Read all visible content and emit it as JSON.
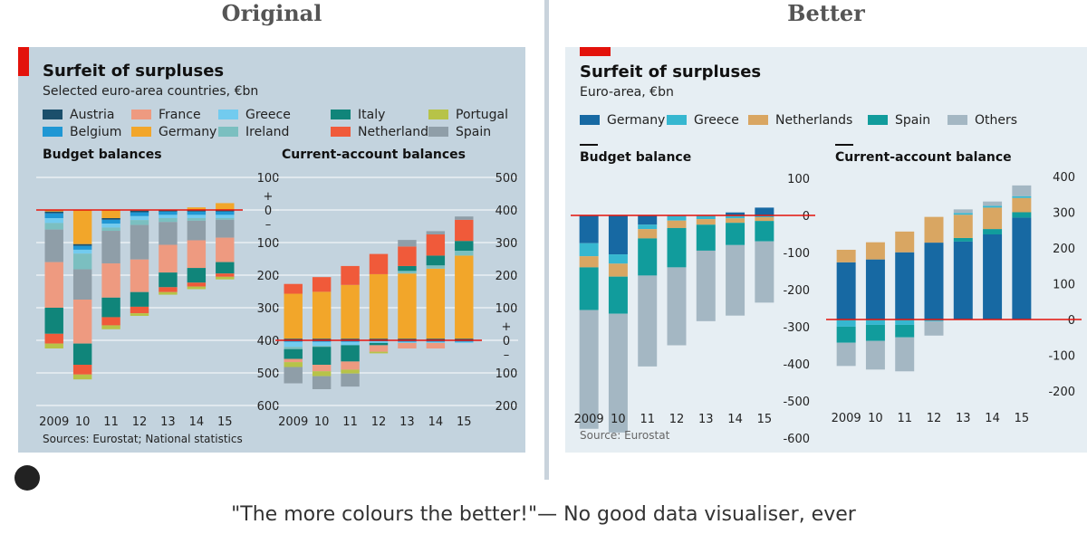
{
  "headings": {
    "left": "Original",
    "right": "Better"
  },
  "left": {
    "title": "Surfeit of surpluses",
    "subtitle": "Selected euro-area countries, €bn",
    "legend": [
      {
        "name": "Austria",
        "color": "#1b4f6b"
      },
      {
        "name": "Belgium",
        "color": "#1f97d4"
      },
      {
        "name": "France",
        "color": "#ee9a80"
      },
      {
        "name": "Germany",
        "color": "#f2a62a"
      },
      {
        "name": "Greece",
        "color": "#72cbef"
      },
      {
        "name": "Ireland",
        "color": "#7bbfc0"
      },
      {
        "name": "Italy",
        "color": "#10857a"
      },
      {
        "name": "Netherlands",
        "color": "#f05a3a"
      },
      {
        "name": "Portugal",
        "color": "#b7c348"
      },
      {
        "name": "Spain",
        "color": "#8f9ea8"
      }
    ],
    "source": "Sources: Eurostat; National statistics"
  },
  "right": {
    "title": "Surfeit of surpluses",
    "subtitle": "Euro-area, €bn",
    "legend": [
      {
        "name": "Germany",
        "color": "#1769a3"
      },
      {
        "name": "Greece",
        "color": "#36b7d0"
      },
      {
        "name": "Netherlands",
        "color": "#d9a662"
      },
      {
        "name": "Spain",
        "color": "#119c9c"
      },
      {
        "name": "Others",
        "color": "#a4b7c3"
      }
    ],
    "source": "Source: Eurostat"
  },
  "caption": "\"The more colours the better!\"— No good data visualiser, ever",
  "chart_data": [
    {
      "type": "bar",
      "id": "orig-budget",
      "title": "Budget balances",
      "stacked": true,
      "categories": [
        "2009",
        "10",
        "11",
        "12",
        "13",
        "14",
        "15"
      ],
      "ylim": [
        -600,
        100
      ],
      "yticks": [
        {
          "v": 100,
          "t": "100"
        },
        {
          "v": 0,
          "t": "0"
        },
        {
          "v": -100,
          "t": "100"
        },
        {
          "v": -200,
          "t": "200"
        },
        {
          "v": -300,
          "t": "300"
        },
        {
          "v": -400,
          "t": "400"
        },
        {
          "v": -500,
          "t": "500"
        },
        {
          "v": -600,
          "t": "600"
        }
      ],
      "sign_labels": [
        "+",
        "–"
      ],
      "series": [
        {
          "name": "Germany",
          "values": [
            -5,
            -105,
            -25,
            -2,
            0,
            8,
            21
          ]
        },
        {
          "name": "Austria",
          "values": [
            -5,
            -5,
            -5,
            -5,
            -5,
            -5,
            -5
          ]
        },
        {
          "name": "Belgium",
          "values": [
            -15,
            -12,
            -12,
            -12,
            -10,
            -10,
            -10
          ]
        },
        {
          "name": "Greece",
          "values": [
            -15,
            -12,
            -12,
            -12,
            -10,
            -10,
            -10
          ]
        },
        {
          "name": "Ireland",
          "values": [
            -20,
            -48,
            -10,
            -15,
            -12,
            -8,
            -5
          ]
        },
        {
          "name": "Spain",
          "values": [
            -100,
            -93,
            -100,
            -106,
            -70,
            -60,
            -55
          ]
        },
        {
          "name": "France",
          "values": [
            -140,
            -135,
            -105,
            -100,
            -85,
            -85,
            -75
          ]
        },
        {
          "name": "Italy",
          "values": [
            -80,
            -65,
            -60,
            -45,
            -45,
            -45,
            -35
          ]
        },
        {
          "name": "Netherlands",
          "values": [
            -30,
            -30,
            -25,
            -20,
            -15,
            -12,
            -10
          ]
        },
        {
          "name": "Portugal",
          "values": [
            -15,
            -15,
            -12,
            -8,
            -8,
            -8,
            -8
          ]
        }
      ]
    },
    {
      "type": "bar",
      "id": "orig-current",
      "title": "Current-account balances",
      "stacked": true,
      "categories": [
        "2009",
        "10",
        "11",
        "12",
        "13",
        "14",
        "15"
      ],
      "ylim": [
        -200,
        500
      ],
      "yticks": [
        {
          "v": 500,
          "t": "500"
        },
        {
          "v": 400,
          "t": "400"
        },
        {
          "v": 300,
          "t": "300"
        },
        {
          "v": 200,
          "t": "200"
        },
        {
          "v": 100,
          "t": "100"
        },
        {
          "v": 0,
          "t": "0"
        },
        {
          "v": -100,
          "t": "100"
        },
        {
          "v": -200,
          "t": "200"
        }
      ],
      "sign_labels": [
        "+",
        "–"
      ],
      "series": [
        {
          "name": "Austria",
          "values": [
            5,
            5,
            5,
            5,
            5,
            5,
            5
          ]
        },
        {
          "name": "Germany",
          "values": [
            138,
            144,
            165,
            198,
            200,
            215,
            255
          ]
        },
        {
          "name": "Ireland",
          "values": [
            0,
            0,
            0,
            0,
            8,
            10,
            15
          ]
        },
        {
          "name": "Italy",
          "values": [
            0,
            0,
            0,
            0,
            15,
            30,
            30
          ]
        },
        {
          "name": "Netherlands",
          "values": [
            30,
            45,
            58,
            62,
            60,
            65,
            65
          ]
        },
        {
          "name": "Spain",
          "values": [
            0,
            0,
            0,
            0,
            20,
            10,
            10
          ]
        },
        {
          "name": "Belgium",
          "values": [
            -5,
            -5,
            -5,
            -3,
            -5,
            -5,
            -5
          ]
        },
        {
          "name": "Greece",
          "values": [
            -15,
            -12,
            -10,
            -5,
            -3,
            -3,
            -3
          ]
        },
        {
          "name": "Ireland",
          "values": [
            -7,
            -3,
            0,
            0,
            0,
            0,
            0
          ]
        },
        {
          "name": "Italy",
          "values": [
            -30,
            -55,
            -50,
            -7,
            0,
            0,
            0
          ]
        },
        {
          "name": "France",
          "values": [
            -10,
            -20,
            -25,
            -20,
            -17,
            -17,
            0
          ]
        },
        {
          "name": "Portugal",
          "values": [
            -15,
            -15,
            -12,
            -5,
            0,
            0,
            0
          ]
        },
        {
          "name": "Spain",
          "values": [
            -50,
            -40,
            -40,
            0,
            0,
            0,
            0
          ]
        }
      ]
    },
    {
      "type": "bar",
      "id": "better-budget",
      "title": "Budget balance",
      "stacked": true,
      "categories": [
        "2009",
        "10",
        "11",
        "12",
        "13",
        "14",
        "15"
      ],
      "ylim": [
        -600,
        100
      ],
      "yticks": [
        {
          "v": 100,
          "t": "100"
        },
        {
          "v": 0,
          "t": "0"
        },
        {
          "v": -100,
          "t": "-100"
        },
        {
          "v": -200,
          "t": "-200"
        },
        {
          "v": -300,
          "t": "-300"
        },
        {
          "v": -400,
          "t": "-400"
        },
        {
          "v": -500,
          "t": "-500"
        },
        {
          "v": -600,
          "t": "-600"
        }
      ],
      "series": [
        {
          "name": "Germany",
          "values": [
            -75,
            -105,
            -25,
            -2,
            0,
            8,
            21
          ]
        },
        {
          "name": "Greece",
          "values": [
            -35,
            -25,
            -12,
            -12,
            -10,
            -8,
            -5
          ]
        },
        {
          "name": "Netherlands",
          "values": [
            -30,
            -35,
            -25,
            -20,
            -15,
            -12,
            -10
          ]
        },
        {
          "name": "Spain",
          "values": [
            -115,
            -100,
            -100,
            -106,
            -70,
            -60,
            -55
          ]
        },
        {
          "name": "Others",
          "values": [
            -320,
            -320,
            -245,
            -210,
            -190,
            -190,
            -165
          ]
        }
      ]
    },
    {
      "type": "bar",
      "id": "better-current",
      "title": "Current-account balance",
      "stacked": true,
      "categories": [
        "2009",
        "10",
        "11",
        "12",
        "13",
        "14",
        "15"
      ],
      "ylim": [
        -200,
        400
      ],
      "yticks": [
        {
          "v": 400,
          "t": "400"
        },
        {
          "v": 300,
          "t": "300"
        },
        {
          "v": 200,
          "t": "200"
        },
        {
          "v": 100,
          "t": "100"
        },
        {
          "v": 0,
          "t": "0"
        },
        {
          "v": -100,
          "t": "-100"
        },
        {
          "v": -200,
          "t": "-200"
        }
      ],
      "series": [
        {
          "name": "Germany",
          "values": [
            160,
            168,
            188,
            215,
            218,
            238,
            285
          ]
        },
        {
          "name": "Spain",
          "values": [
            0,
            0,
            0,
            0,
            10,
            15,
            15
          ]
        },
        {
          "name": "Netherlands",
          "values": [
            35,
            48,
            58,
            72,
            65,
            60,
            40
          ]
        },
        {
          "name": "Greece",
          "values": [
            0,
            0,
            0,
            0,
            5,
            5,
            5
          ]
        },
        {
          "name": "Others",
          "values": [
            0,
            0,
            0,
            0,
            10,
            12,
            30
          ]
        },
        {
          "name": "Greece",
          "values": [
            -20,
            -15,
            -15,
            -5,
            0,
            0,
            0
          ]
        },
        {
          "name": "Spain",
          "values": [
            -45,
            -45,
            -35,
            0,
            0,
            0,
            0
          ]
        },
        {
          "name": "Others",
          "values": [
            -65,
            -80,
            -95,
            -40,
            0,
            0,
            0
          ]
        }
      ]
    }
  ]
}
